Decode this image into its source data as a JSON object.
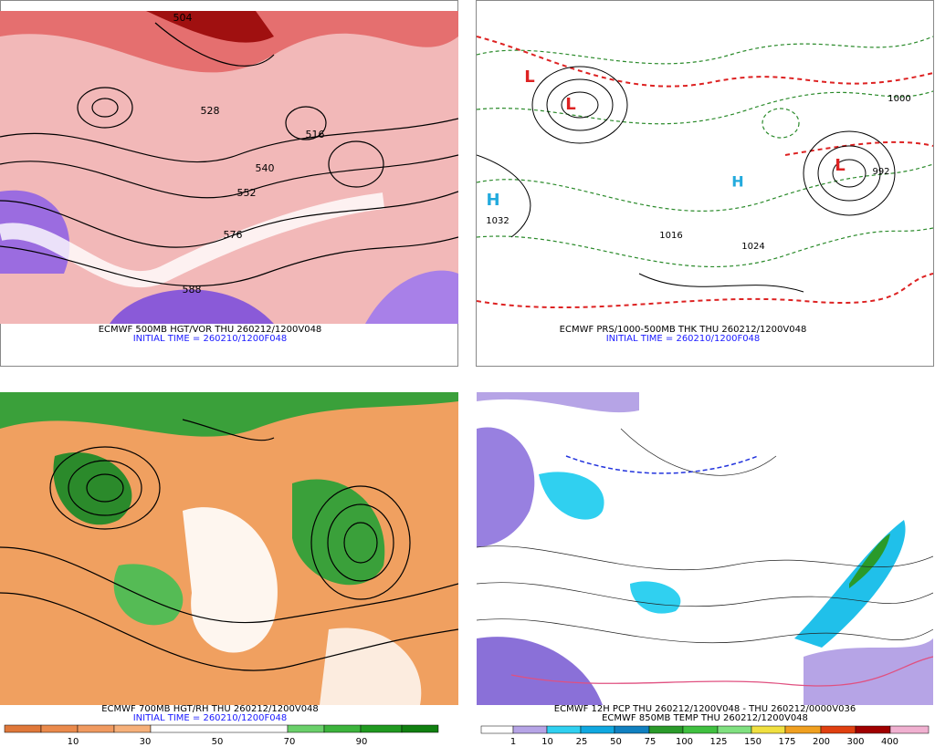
{
  "panels": [
    {
      "caption": "ECMWF 500MB HGT/VOR THU 260212/1200V048",
      "initial_time": "INITIAL TIME = 260210/1200F048",
      "map_labels": [
        "504",
        "528",
        "516",
        "540",
        "552",
        "576",
        "588"
      ]
    },
    {
      "caption": "ECMWF PRS/1000-500MB THK THU 260212/1200V048",
      "initial_time": "INITIAL TIME = 260210/1200F048",
      "map_labels": [
        "L",
        "L",
        "L",
        "H",
        "H",
        "1032",
        "1016",
        "1000",
        "992",
        "1024"
      ]
    },
    {
      "caption": "ECMWF 700MB HGT/RH THU 260212/1200V048",
      "initial_time": "INITIAL TIME = 260210/1200F048",
      "colorbar": [
        10,
        30,
        50,
        70,
        90
      ]
    },
    {
      "caption": "ECMWF 12H PCP THU 260212/1200V048 - THU 260212/0000V036",
      "caption2": "ECMWF 850MB TEMP THU 260212/1200V048",
      "colorbar": [
        1,
        10,
        25,
        50,
        75,
        100,
        125,
        150,
        175,
        200,
        300,
        400
      ]
    }
  ]
}
